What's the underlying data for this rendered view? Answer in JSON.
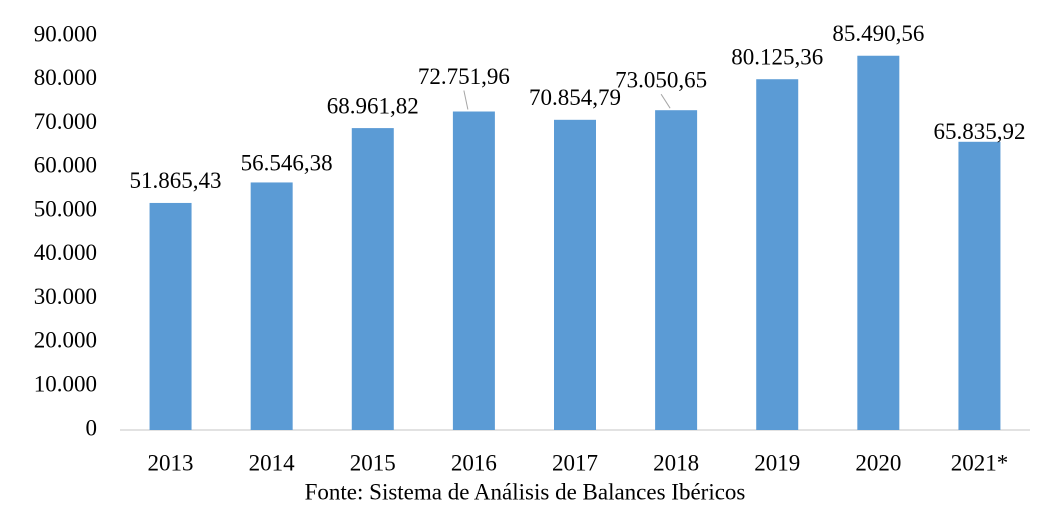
{
  "chart_data": {
    "type": "bar",
    "categories": [
      "2013",
      "2014",
      "2015",
      "2016",
      "2017",
      "2018",
      "2019",
      "2020",
      "2021*"
    ],
    "values": [
      51865.43,
      56546.38,
      68961.82,
      72751.96,
      70854.79,
      73050.65,
      80125.36,
      85490.56,
      65835.92
    ],
    "value_labels": [
      "51.865,43",
      "56.546,38",
      "68.961,82",
      "72.751,96",
      "70.854,79",
      "73.050,65",
      "80.125,36",
      "85.490,56",
      "65.835,92"
    ],
    "color": "#5b9bd5",
    "ylim": [
      0,
      90000
    ],
    "yticks": [
      0,
      {
        "value": 10000,
        "label": "10.000"
      },
      {
        "value": 20000,
        "label": "20.000"
      },
      {
        "value": 30000,
        "label": "30.000"
      },
      {
        "value": 40000,
        "label": "40.000"
      },
      {
        "value": 50000,
        "label": "50.000"
      },
      {
        "value": 60000,
        "label": "60.000"
      },
      {
        "value": 70000,
        "label": "70.000"
      },
      {
        "value": 80000,
        "label": "80.000"
      },
      {
        "value": 90000,
        "label": "90.000"
      }
    ],
    "source": "Fonte: Sistema de Análisis de Balances Ibéricos"
  }
}
